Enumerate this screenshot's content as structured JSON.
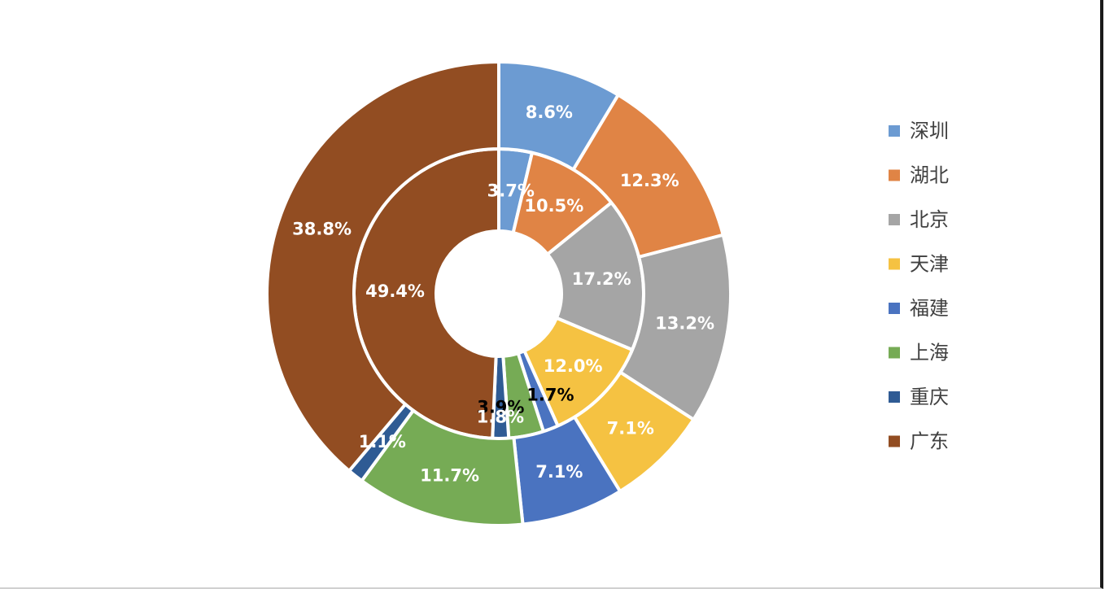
{
  "chart_data": {
    "type": "pie",
    "subtype": "double-donut",
    "title": "",
    "categories": [
      "深圳",
      "湖北",
      "北京",
      "天津",
      "福建",
      "上海",
      "重庆",
      "广东"
    ],
    "colors": [
      "#6C9BD2",
      "#E08445",
      "#A5A5A5",
      "#F5C242",
      "#4A73C0",
      "#76AB55",
      "#2F5B94",
      "#924D22"
    ],
    "series": [
      {
        "ring": "inner",
        "values": [
          3.7,
          10.5,
          17.2,
          12.0,
          1.7,
          3.9,
          1.8,
          49.4
        ],
        "labels": [
          "3.7%",
          "10.5%",
          "17.2%",
          "12.0%",
          "1.7%",
          "3.9%",
          "1.8%",
          "49.4%"
        ]
      },
      {
        "ring": "outer",
        "values": [
          8.6,
          12.3,
          13.2,
          7.1,
          7.1,
          11.7,
          1.1,
          38.8
        ],
        "labels": [
          "8.6%",
          "12.3%",
          "13.2%",
          "7.1%",
          "7.1%",
          "11.7%",
          "1.1%",
          "38.8%"
        ]
      }
    ],
    "legend": {
      "position": "right"
    }
  }
}
